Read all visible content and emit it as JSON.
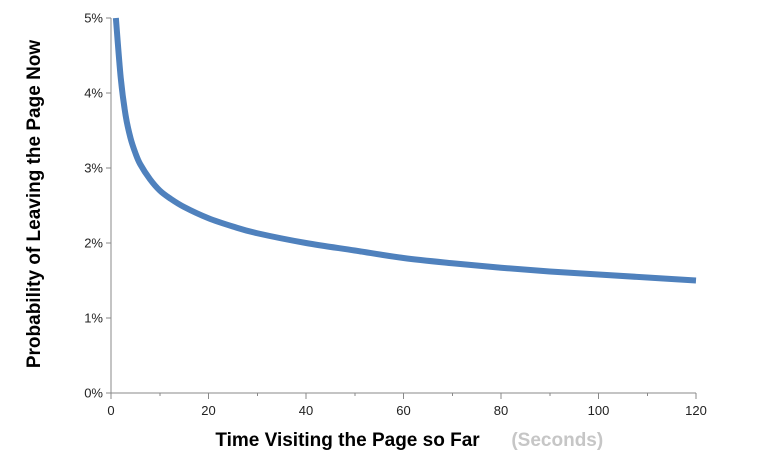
{
  "chart_data": {
    "type": "line",
    "title": "",
    "xlabel": "Time Visiting the Page so Far",
    "xlabel_unit": "(Seconds)",
    "ylabel": "Probability of Leaving  the Page Now",
    "xlim": [
      0,
      120
    ],
    "ylim": [
      0,
      5
    ],
    "x_ticks": [
      0,
      20,
      40,
      60,
      80,
      100,
      120
    ],
    "x_tick_labels": [
      "0",
      "20",
      "40",
      "60",
      "80",
      "100",
      "120"
    ],
    "y_ticks": [
      0,
      1,
      2,
      3,
      4,
      5
    ],
    "y_tick_labels": [
      "0%",
      "1%",
      "2%",
      "3%",
      "4%",
      "5%"
    ],
    "grid": false,
    "legend": "none",
    "series": [
      {
        "x": [
          1,
          2,
          3,
          4,
          5,
          6,
          8,
          10,
          12,
          15,
          20,
          25,
          30,
          40,
          50,
          60,
          70,
          80,
          90,
          100,
          110,
          120
        ],
        "y": [
          5.0,
          4.2,
          3.7,
          3.4,
          3.2,
          3.05,
          2.85,
          2.7,
          2.6,
          2.48,
          2.33,
          2.22,
          2.13,
          2.0,
          1.9,
          1.8,
          1.73,
          1.67,
          1.62,
          1.58,
          1.54,
          1.5
        ]
      }
    ],
    "colors": {
      "line": "#4f81bd",
      "axis": "#898989"
    }
  }
}
